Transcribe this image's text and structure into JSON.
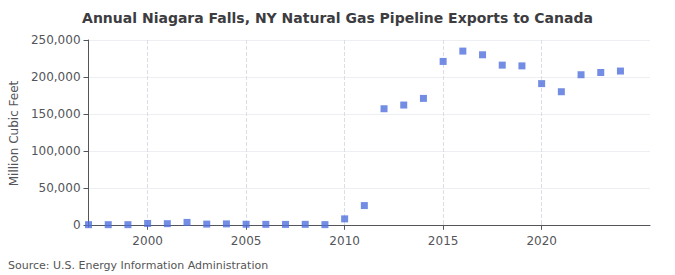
{
  "chart_data": {
    "type": "scatter",
    "title": "Annual Niagara Falls, NY Natural Gas Pipeline Exports to Canada",
    "y_label": "Million Cubic Feet",
    "annotations": [
      "Source: U.S. Energy Information Administration"
    ],
    "x": [
      1997,
      1998,
      1999,
      2000,
      2001,
      2002,
      2003,
      2004,
      2005,
      2006,
      2007,
      2008,
      2009,
      2010,
      2011,
      2012,
      2013,
      2014,
      2015,
      2016,
      2017,
      2018,
      2019,
      2020,
      2021,
      2022,
      2023,
      2024
    ],
    "values": [
      150,
      150,
      150,
      1800,
      1500,
      3200,
      900,
      1200,
      700,
      600,
      500,
      600,
      200,
      8000,
      26000,
      157000,
      162000,
      171000,
      221000,
      235000,
      230000,
      216000,
      215000,
      191000,
      180000,
      203000,
      206000,
      208000
    ],
    "marker": "square",
    "xlim": [
      1997.0,
      2025.5
    ],
    "xticks": [
      2000,
      2005,
      2010,
      2015,
      2020
    ],
    "ylim": [
      -3000,
      250000
    ],
    "yticks": [
      0,
      {
        "value": 50000,
        "label": "50,000"
      },
      {
        "value": 100000,
        "label": "100,000"
      },
      {
        "value": 150000,
        "label": "150,000"
      },
      {
        "value": 200000,
        "label": "200,000"
      },
      {
        "value": 250000,
        "label": "250,000"
      }
    ],
    "grid": true
  }
}
